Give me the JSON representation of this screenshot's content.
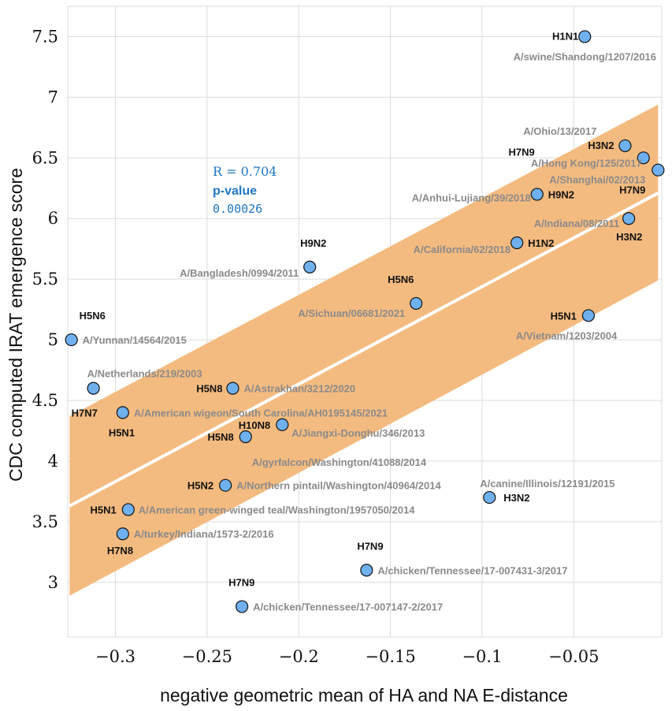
{
  "chart_data": {
    "type": "scatter",
    "xlabel": "negative geometric mean of HA and NA E-distance",
    "ylabel": "CDC computed IRAT emergence score",
    "xlim": [
      -0.326,
      -0.002
    ],
    "ylim": [
      2.55,
      7.75
    ],
    "xticks": [
      -0.3,
      -0.25,
      -0.2,
      -0.15,
      -0.1,
      -0.05
    ],
    "xtick_labels": [
      "−0.3",
      "−0.25",
      "−0.2",
      "−0.15",
      "−0.1",
      "−0.05"
    ],
    "yticks": [
      3,
      3.5,
      4,
      4.5,
      5,
      5.5,
      6,
      6.5,
      7,
      7.5
    ],
    "ytick_labels": [
      "3",
      "3.5",
      "4",
      "4.5",
      "5",
      "5.5",
      "6",
      "6.5",
      "7",
      "7.5"
    ],
    "grid": true,
    "fit_line": {
      "x": [
        -0.325,
        -0.004
      ],
      "y": [
        3.63,
        6.21
      ],
      "color": "#ffffff"
    },
    "confidence_band": {
      "x": [
        -0.325,
        -0.004
      ],
      "upper": [
        4.37,
        6.94
      ],
      "lower": [
        2.89,
        5.49
      ],
      "color": "#f4bb80"
    },
    "stats": {
      "r_label": "R = 0.704",
      "p_label": "p-value",
      "p_value": "0.00026"
    },
    "marker_color": "#6fb0ee",
    "points": [
      {
        "x": -0.044,
        "y": 7.5,
        "subtype": "H1N1",
        "strain": "A/swine/Shandong/1207/2016"
      },
      {
        "x": -0.022,
        "y": 6.6,
        "subtype": "H3N2",
        "strain": "A/Ohio/13/2017"
      },
      {
        "x": -0.012,
        "y": 6.5,
        "subtype": "H7N9",
        "strain": "A/Hong Kong/125/2017"
      },
      {
        "x": -0.004,
        "y": 6.4,
        "subtype": "H7N9",
        "strain": "A/Shanghai/02/2013"
      },
      {
        "x": -0.07,
        "y": 6.2,
        "subtype": "H9N2",
        "strain": "A/Anhui-Lujiang/39/2018"
      },
      {
        "x": -0.02,
        "y": 6.0,
        "subtype": "H3N2",
        "strain": "A/Indiana/08/2011"
      },
      {
        "x": -0.081,
        "y": 5.8,
        "subtype": "H1N2",
        "strain": "A/California/62/2018"
      },
      {
        "x": -0.194,
        "y": 5.6,
        "subtype": "H9N2",
        "strain": "A/Bangladesh/0994/2011"
      },
      {
        "x": -0.136,
        "y": 5.3,
        "subtype": "H5N6",
        "strain": "A/Sichuan/06681/2021"
      },
      {
        "x": -0.042,
        "y": 5.2,
        "subtype": "H5N1",
        "strain": "A/Vietnam/1203/2004"
      },
      {
        "x": -0.324,
        "y": 5.0,
        "subtype": "H5N6",
        "strain": "A/Yunnan/14564/2015"
      },
      {
        "x": -0.312,
        "y": 4.6,
        "subtype": "H7N7",
        "strain": "A/Netherlands/219/2003"
      },
      {
        "x": -0.236,
        "y": 4.6,
        "subtype": "H5N8",
        "strain": "A/Astrakhan/3212/2020"
      },
      {
        "x": -0.296,
        "y": 4.4,
        "subtype": "H5N1",
        "strain": "A/American wigeon/South Carolina/AH0195145/2021"
      },
      {
        "x": -0.209,
        "y": 4.3,
        "subtype": "H10N8",
        "strain": "A/Jiangxi-Donghu/346/2013"
      },
      {
        "x": -0.229,
        "y": 4.2,
        "subtype": "H5N8",
        "strain": "A/gyrfalcon/Washington/41088/2014"
      },
      {
        "x": -0.24,
        "y": 3.8,
        "subtype": "H5N2",
        "strain": "A/Northern pintail/Washington/40964/2014"
      },
      {
        "x": -0.096,
        "y": 3.7,
        "subtype": "H3N2",
        "strain": "A/canine/Illinois/12191/2015"
      },
      {
        "x": -0.293,
        "y": 3.6,
        "subtype": "H5N1",
        "strain": "A/American green-winged teal/Washington/1957050/2014"
      },
      {
        "x": -0.296,
        "y": 3.4,
        "subtype": "H7N8",
        "strain": "A/turkey/Indiana/1573-2/2016"
      },
      {
        "x": -0.163,
        "y": 3.1,
        "subtype": "H7N9",
        "strain": "A/chicken/Tennessee/17-007431-3/2017"
      },
      {
        "x": -0.231,
        "y": 2.8,
        "subtype": "H7N9",
        "strain": "A/chicken/Tennessee/17-007147-2/2017"
      }
    ]
  }
}
